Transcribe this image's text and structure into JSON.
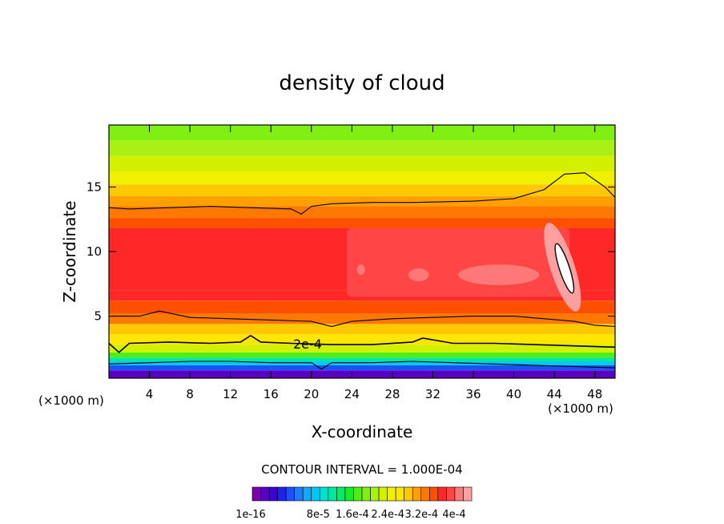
{
  "chart_data": {
    "type": "heatmap",
    "title": "density of cloud",
    "xlabel": "X-coordinate",
    "ylabel": "Z-coordinate",
    "x_unit_left": "(×1000 m)",
    "x_unit_right": "(×1000 m)",
    "xlim": [
      0,
      50
    ],
    "ylim": [
      0.2,
      19.8
    ],
    "xticks": [
      4,
      8,
      12,
      16,
      20,
      24,
      28,
      32,
      36,
      40,
      44,
      48
    ],
    "yticks": [
      5,
      10,
      15
    ],
    "contour_label": "2e-4",
    "contour_interval_text": "CONTOUR INTERVAL = 1.000E-04",
    "colorbar": {
      "colors": [
        "#7a00a8",
        "#5a00c0",
        "#3c00d8",
        "#2020f0",
        "#1e50f5",
        "#1e7cf8",
        "#14a8f8",
        "#00c8f0",
        "#00e0d0",
        "#00e8a0",
        "#00ec64",
        "#14ec28",
        "#50ee14",
        "#80f014",
        "#aaf014",
        "#d2f000",
        "#f0f000",
        "#ffe600",
        "#ffc800",
        "#ffa000",
        "#ff7800",
        "#ff5000",
        "#ff2828",
        "#ff4646",
        "#ff7878",
        "#ffa0a0"
      ],
      "labels": [
        "1e-16",
        "8e-5",
        "1.6e-4",
        "2.4e-4",
        "3.2e-4",
        "4e-4"
      ]
    },
    "bands_from_bottom": [
      {
        "z0": 0.2,
        "z1": 0.8,
        "level": 1
      },
      {
        "z0": 0.8,
        "z1": 1.2,
        "level": 4
      },
      {
        "z0": 1.2,
        "z1": 1.5,
        "level": 7
      },
      {
        "z0": 1.5,
        "z1": 1.8,
        "level": 9
      },
      {
        "z0": 1.8,
        "z1": 2.2,
        "level": 12
      },
      {
        "z0": 2.2,
        "z1": 2.8,
        "level": 15
      },
      {
        "z0": 2.8,
        "z1": 3.6,
        "level": 17
      },
      {
        "z0": 3.6,
        "z1": 4.4,
        "level": 18
      },
      {
        "z0": 4.4,
        "z1": 5.2,
        "level": 20
      },
      {
        "z0": 5.2,
        "z1": 6.2,
        "level": 21
      },
      {
        "z0": 6.2,
        "z1": 7.0,
        "level": 22
      },
      {
        "z0": 7.0,
        "z1": 11.8,
        "level": 22
      },
      {
        "z0": 11.8,
        "z1": 12.6,
        "level": 21
      },
      {
        "z0": 12.6,
        "z1": 13.5,
        "level": 20
      },
      {
        "z0": 13.5,
        "z1": 14.3,
        "level": 19
      },
      {
        "z0": 14.3,
        "z1": 15.2,
        "level": 18
      },
      {
        "z0": 15.2,
        "z1": 16.2,
        "level": 16
      },
      {
        "z0": 16.2,
        "z1": 17.4,
        "level": 15
      },
      {
        "z0": 17.4,
        "z1": 18.6,
        "level": 14
      },
      {
        "z0": 18.6,
        "z1": 19.8,
        "level": 13
      }
    ],
    "core_region": {
      "x0": 23.5,
      "x1": 45.5,
      "z0": 6.5,
      "z1": 11.8,
      "level": 23
    },
    "light_blobs": [
      {
        "cx": 24.9,
        "cz": 8.6,
        "rx": 0.4,
        "rz": 0.4,
        "level": 24
      },
      {
        "cx": 30.6,
        "cz": 8.2,
        "rx": 1.0,
        "rz": 0.5,
        "level": 24
      },
      {
        "cx": 38.5,
        "cz": 8.2,
        "rx": 4.0,
        "rz": 0.8,
        "level": 24
      },
      {
        "cx": 44.8,
        "cz": 8.8,
        "rx": 1.2,
        "rz": 3.6,
        "level": 25
      }
    ],
    "white_max_region": {
      "cx": 45.0,
      "cz": 8.7,
      "rx": 0.5,
      "rz": 2.0
    },
    "contour_lines": [
      {
        "name": "upper",
        "x": [
          0,
          2,
          6,
          10,
          14,
          18,
          19,
          20,
          22,
          26,
          30,
          36,
          40,
          43,
          45,
          47,
          49,
          50
        ],
        "z": [
          13.4,
          13.3,
          13.4,
          13.5,
          13.4,
          13.3,
          12.9,
          13.5,
          13.7,
          13.8,
          13.8,
          13.9,
          14.1,
          14.8,
          16.0,
          16.1,
          15.0,
          14.2
        ]
      },
      {
        "name": "lower",
        "x": [
          0,
          3,
          5,
          8,
          12,
          16,
          20,
          22,
          24,
          28,
          32,
          36,
          40,
          43,
          46,
          48,
          50
        ],
        "z": [
          5.0,
          5.0,
          5.4,
          4.9,
          4.8,
          4.7,
          4.6,
          4.2,
          4.6,
          4.8,
          4.9,
          5.0,
          5.0,
          4.8,
          4.6,
          4.3,
          4.2
        ]
      },
      {
        "name": "2e-4",
        "x": [
          0,
          1,
          2,
          6,
          10,
          13,
          14,
          15,
          18,
          22,
          26,
          30,
          31,
          34,
          38,
          42,
          46,
          50
        ],
        "z": [
          2.9,
          2.2,
          2.9,
          3.0,
          2.9,
          3.0,
          3.5,
          3.0,
          2.9,
          2.8,
          2.8,
          3.0,
          3.3,
          2.9,
          2.9,
          2.8,
          2.7,
          2.6
        ]
      },
      {
        "name": "base",
        "x": [
          0,
          4,
          8,
          12,
          16,
          20,
          21,
          22,
          26,
          30,
          34,
          38,
          42,
          46,
          50
        ],
        "z": [
          1.3,
          1.4,
          1.5,
          1.5,
          1.4,
          1.4,
          0.9,
          1.4,
          1.4,
          1.5,
          1.4,
          1.3,
          1.2,
          1.1,
          1.0
        ]
      }
    ]
  }
}
